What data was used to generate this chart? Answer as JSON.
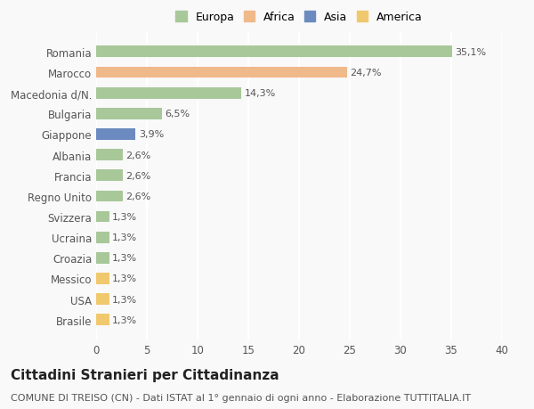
{
  "countries": [
    "Brasile",
    "USA",
    "Messico",
    "Croazia",
    "Ucraina",
    "Svizzera",
    "Regno Unito",
    "Francia",
    "Albania",
    "Giappone",
    "Bulgaria",
    "Macedonia d/N.",
    "Marocco",
    "Romania"
  ],
  "values": [
    1.3,
    1.3,
    1.3,
    1.3,
    1.3,
    1.3,
    2.6,
    2.6,
    2.6,
    3.9,
    6.5,
    14.3,
    24.7,
    35.1
  ],
  "labels": [
    "1,3%",
    "1,3%",
    "1,3%",
    "1,3%",
    "1,3%",
    "1,3%",
    "2,6%",
    "2,6%",
    "2,6%",
    "3,9%",
    "6,5%",
    "14,3%",
    "24,7%",
    "35,1%"
  ],
  "colors": [
    "#f0c96e",
    "#f0c96e",
    "#f0c96e",
    "#a8c89a",
    "#a8c89a",
    "#a8c89a",
    "#a8c89a",
    "#a8c89a",
    "#a8c89a",
    "#6b8abf",
    "#a8c89a",
    "#a8c89a",
    "#f0b98a",
    "#a8c89a"
  ],
  "legend_labels": [
    "Europa",
    "Africa",
    "Asia",
    "America"
  ],
  "legend_colors": [
    "#a8c89a",
    "#f0b98a",
    "#6b8abf",
    "#f0c96e"
  ],
  "title": "Cittadini Stranieri per Cittadinanza",
  "subtitle": "COMUNE DI TREISO (CN) - Dati ISTAT al 1° gennaio di ogni anno - Elaborazione TUTTITALIA.IT",
  "xlim": [
    0,
    40
  ],
  "xticks": [
    0,
    5,
    10,
    15,
    20,
    25,
    30,
    35,
    40
  ],
  "background_color": "#f9f9f9",
  "grid_color": "#ffffff",
  "bar_height": 0.55,
  "title_fontsize": 11,
  "subtitle_fontsize": 8,
  "label_fontsize": 8,
  "tick_fontsize": 8.5,
  "legend_fontsize": 9
}
